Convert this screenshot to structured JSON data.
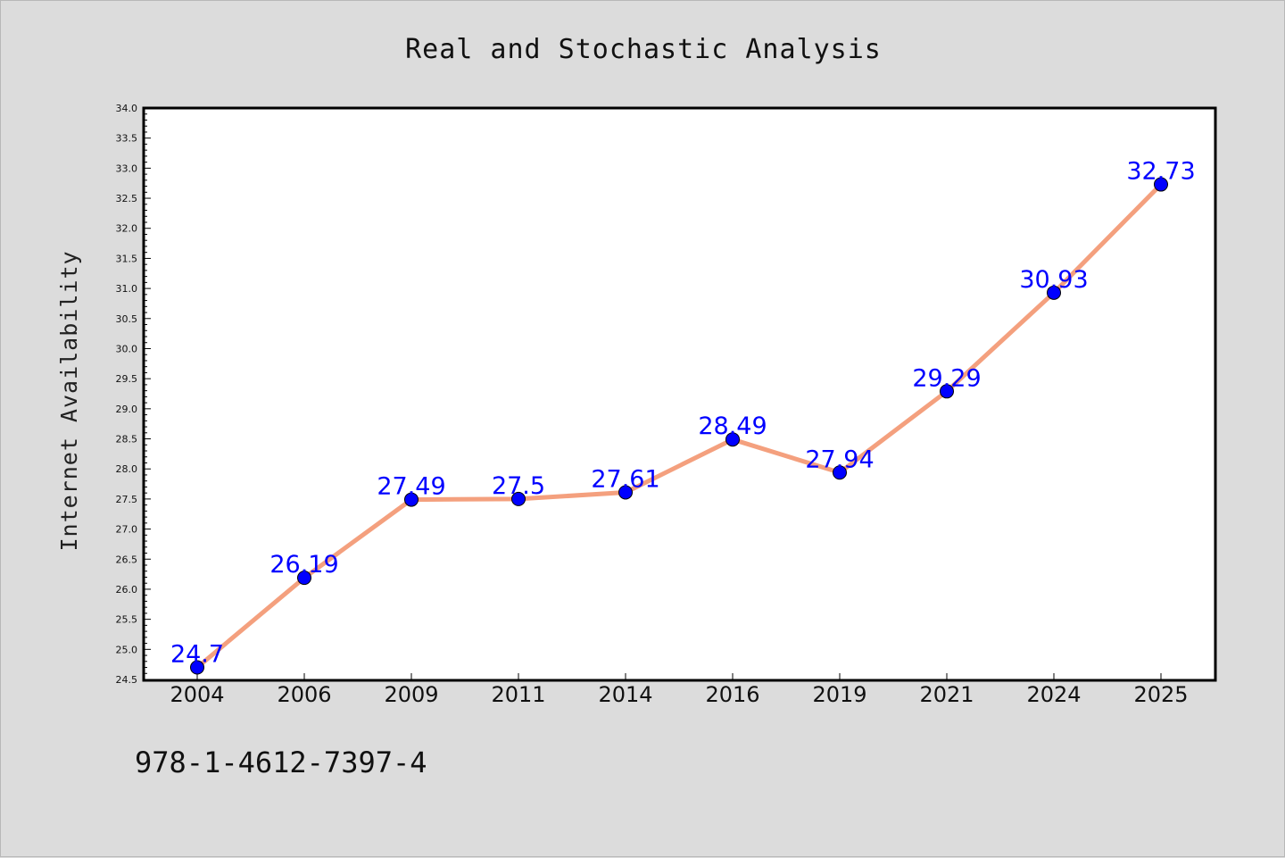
{
  "chart_data": {
    "type": "line",
    "title": "Real and Stochastic Analysis",
    "xlabel": "",
    "ylabel": "Internet Availability",
    "categories": [
      "2004",
      "2006",
      "2009",
      "2011",
      "2014",
      "2016",
      "2019",
      "2021",
      "2024",
      "2025"
    ],
    "values": [
      24.7,
      26.19,
      27.49,
      27.5,
      27.61,
      28.49,
      27.94,
      29.29,
      30.93,
      32.73
    ],
    "data_labels": [
      "24.7",
      "26.19",
      "27.49",
      "27.5",
      "27.61",
      "28.49",
      "27.94",
      "29.29",
      "30.93",
      "32.73"
    ],
    "ylim": [
      24.5,
      34.0
    ],
    "yticks": [
      "24.5",
      "25.0",
      "25.5",
      "26.0",
      "26.5",
      "27.0",
      "27.5",
      "28.0",
      "28.5",
      "29.0",
      "29.5",
      "30.0",
      "30.5",
      "31.0",
      "31.5",
      "32.0",
      "32.5",
      "33.0",
      "33.5",
      "34.0"
    ],
    "grid": false,
    "legend": "none",
    "line_color": "#f4a07e",
    "marker_color": "#0000ff",
    "label_color": "#0000ff",
    "footer": "978-1-4612-7397-4"
  },
  "colors": {
    "background": "#dcdcdc",
    "plot_background": "#ffffff"
  }
}
